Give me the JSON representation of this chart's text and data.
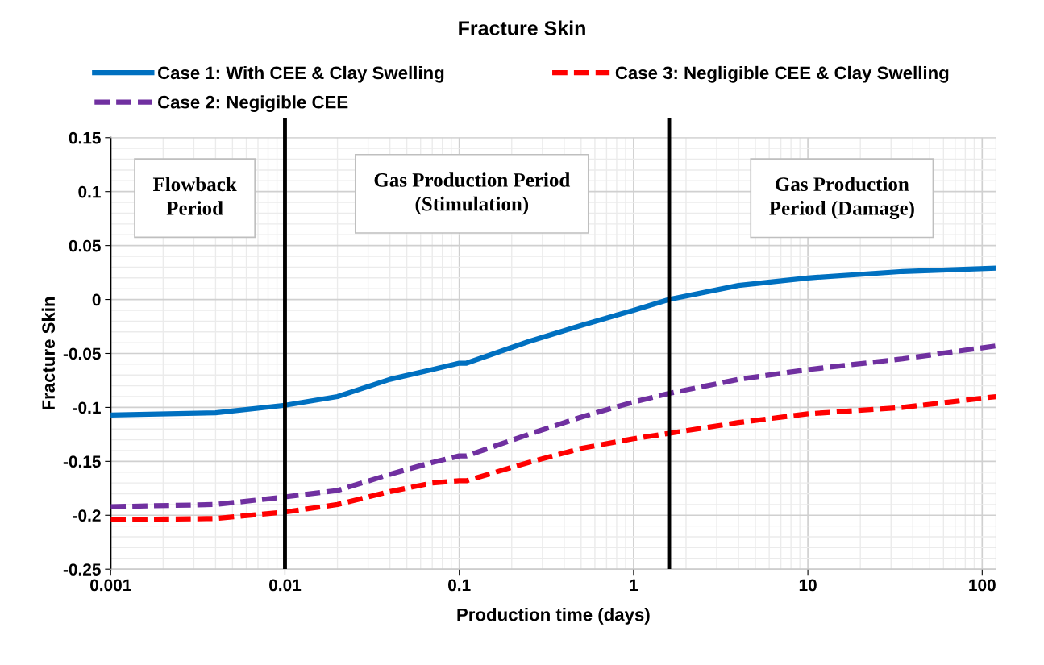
{
  "chart_data": {
    "type": "line",
    "title": "Fracture Skin",
    "xlabel": "Production time (days)",
    "ylabel": "Fracture Skin",
    "x": [
      0.001,
      0.004,
      0.01,
      0.02,
      0.04,
      0.07,
      0.1,
      0.11,
      0.25,
      0.5,
      1,
      1.6,
      4,
      10,
      35,
      120
    ],
    "series": [
      {
        "name": "Case 1: With CEE & Clay Swelling",
        "color": "#0070c0",
        "line_style": "solid",
        "values": [
          -0.107,
          -0.105,
          -0.098,
          -0.09,
          -0.074,
          -0.065,
          -0.059,
          -0.059,
          -0.039,
          -0.024,
          -0.01,
          0.0,
          0.013,
          0.02,
          0.026,
          0.029
        ]
      },
      {
        "name": "Case 2: Negigible CEE",
        "color": "#7030a0",
        "line_style": "dashed",
        "values": [
          -0.192,
          -0.19,
          -0.183,
          -0.177,
          -0.162,
          -0.151,
          -0.145,
          -0.145,
          -0.125,
          -0.109,
          -0.095,
          -0.087,
          -0.074,
          -0.065,
          -0.055,
          -0.043
        ]
      },
      {
        "name": "Case 3: Negligible CEE & Clay Swelling",
        "color": "#ff0000",
        "line_style": "dashed",
        "values": [
          -0.204,
          -0.203,
          -0.197,
          -0.19,
          -0.178,
          -0.17,
          -0.168,
          -0.168,
          -0.151,
          -0.138,
          -0.129,
          -0.124,
          -0.114,
          -0.106,
          -0.1,
          -0.09
        ]
      }
    ],
    "log": "x",
    "xlim": [
      0.001,
      120
    ],
    "xticks": [
      0.001,
      0.01,
      0.1,
      1,
      10,
      100
    ],
    "ylim": [
      -0.25,
      0.15
    ],
    "yticks": [
      -0.25,
      -0.2,
      -0.15,
      -0.1,
      -0.05,
      0,
      0.05,
      0.1,
      0.15
    ],
    "grid": true,
    "legend": "top",
    "marker": "none",
    "ref_lines": [
      {
        "axis": "x",
        "value": 0.01,
        "color": "#000000"
      },
      {
        "axis": "x",
        "value": 1.6,
        "color": "#000000"
      }
    ],
    "annotations": [
      "Flowback\nPeriod",
      "Gas Production Period\n(Stimulation)",
      "Gas Production\nPeriod (Damage)"
    ]
  }
}
